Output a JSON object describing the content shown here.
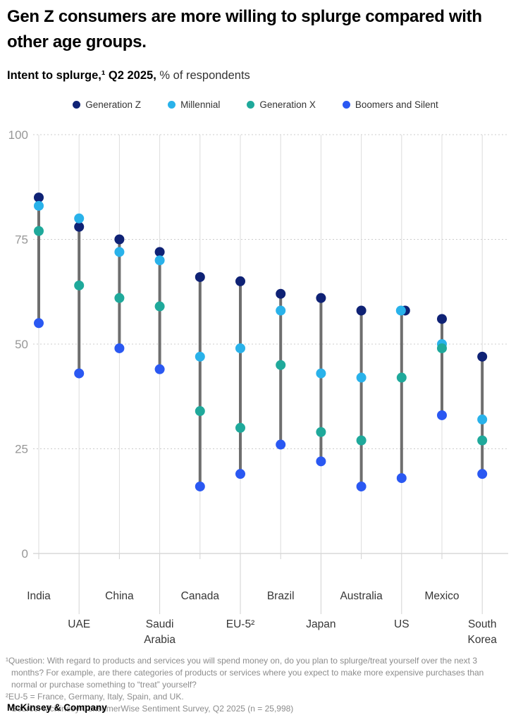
{
  "title": "Gen Z consumers are more willing to splurge compared with other age groups.",
  "subtitle": {
    "bold": "Intent to splurge,¹ Q2 2025,",
    "regular": " % of respondents"
  },
  "chart_data": {
    "type": "scatter",
    "subtype": "dot-range-dumbbell",
    "title": "Intent to splurge, Q2 2025, % of respondents",
    "categories": [
      "India",
      "UAE",
      "China",
      "Saudi Arabia",
      "Canada",
      "EU-5²",
      "Brazil",
      "Japan",
      "Australia",
      "US",
      "Mexico",
      "South Korea"
    ],
    "series": [
      {
        "name": "Generation Z",
        "color": "#0F2275",
        "values": [
          85,
          78,
          75,
          72,
          66,
          65,
          62,
          61,
          58,
          58,
          56,
          47
        ]
      },
      {
        "name": "Millennial",
        "color": "#29B2EA",
        "values": [
          83,
          80,
          72,
          70,
          47,
          49,
          58,
          43,
          42,
          58,
          50,
          32
        ]
      },
      {
        "name": "Generation X",
        "color": "#1FA99B",
        "values": [
          77,
          64,
          61,
          59,
          34,
          30,
          45,
          29,
          27,
          42,
          49,
          27
        ]
      },
      {
        "name": "Boomers and Silent",
        "color": "#2A58F2",
        "values": [
          55,
          43,
          49,
          44,
          16,
          19,
          26,
          22,
          16,
          18,
          33,
          19
        ]
      }
    ],
    "xlabel": "",
    "ylabel": "% of respondents",
    "ylim": [
      0,
      100
    ],
    "yticks": [
      0,
      25,
      50,
      75,
      100
    ],
    "grid": "horizontal-dotted",
    "legend_position": "top",
    "range_bar_color": "#6E6E6E"
  },
  "footnotes": {
    "question": "¹Question: With regard to products and services you will spend money on, do you plan to splurge/treat yourself over the next 3 months? For example, are there categories of products or services where you expect to make more expensive purchases than normal or purchase something to “treat” yourself?",
    "eu5": "²EU-5 = France, Germany, Italy, Spain, and UK.",
    "source": "Source: McKinsey ConsumerWise Sentiment Survey, Q2 2025 (n = 25,998)"
  },
  "logo": "McKinsey & Company"
}
